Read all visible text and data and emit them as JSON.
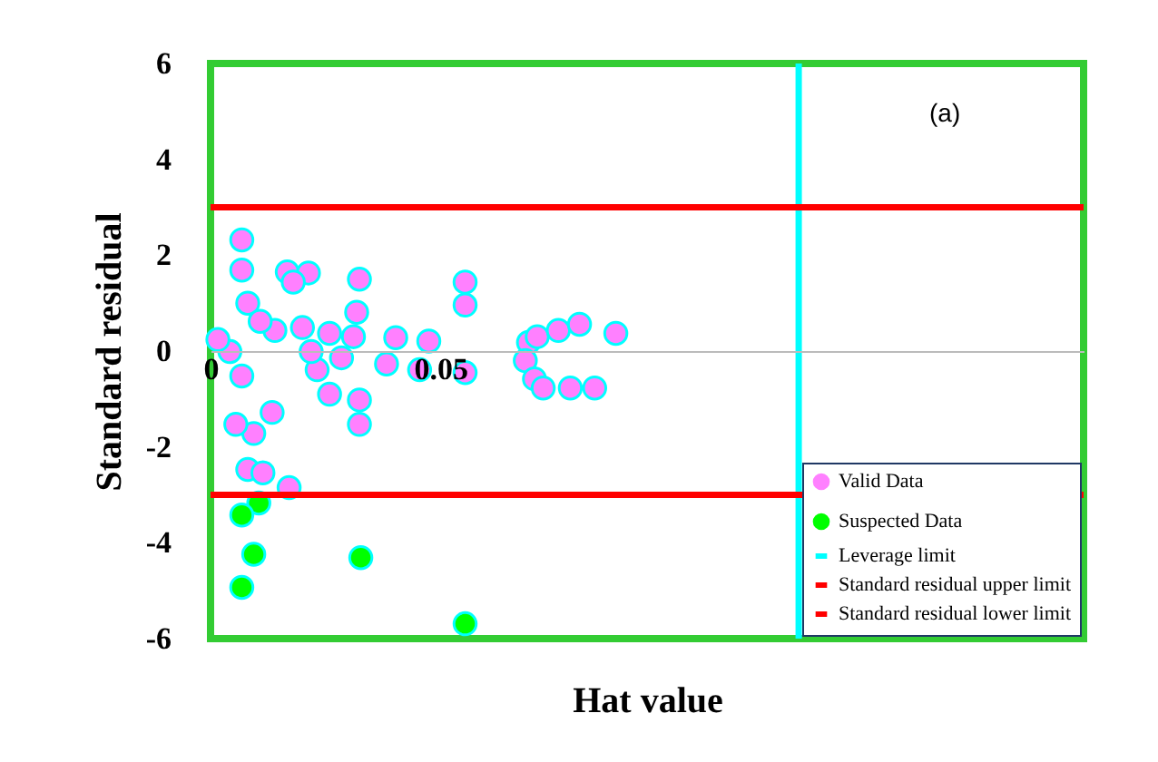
{
  "chart_data": {
    "type": "scatter",
    "xlabel": "Hat value",
    "ylabel": "Standard residual",
    "annotations": [
      "(a)"
    ],
    "xlim": [
      0,
      0.19
    ],
    "xticks": [
      0,
      0.05
    ],
    "ylim": [
      -6,
      6
    ],
    "yticks": [
      -6,
      -4,
      -2,
      0,
      2,
      4,
      6
    ],
    "grid": false,
    "legend": "bottom right",
    "marker": "circle",
    "series": [
      {
        "name": "Valid Data",
        "color": "#ff80ff",
        "x": [
          0.0068,
          0.0068,
          0.0167,
          0.0213,
          0.018,
          0.0324,
          0.0554,
          0.0554,
          0.0081,
          0.014,
          0.0318,
          0.0259,
          0.0311,
          0.0403,
          0.0475,
          0.0383,
          0.0455,
          0.0554,
          0.0232,
          0.0285,
          0.0259,
          0.0324,
          0.0324,
          0.0094,
          0.0081,
          0.0114,
          0.0171,
          0.0055,
          0.0134,
          0.0042,
          0.0016,
          0.0068,
          0.0108,
          0.02,
          0.0219,
          0.0692,
          0.0685,
          0.0711,
          0.0757,
          0.0803,
          0.0882,
          0.0705,
          0.0724,
          0.0783,
          0.0836
        ],
        "values": [
          2.32,
          1.69,
          1.65,
          1.63,
          1.44,
          1.5,
          1.44,
          0.96,
          1.0,
          0.43,
          0.81,
          0.37,
          0.3,
          0.28,
          0.21,
          -0.27,
          -0.39,
          -0.45,
          -0.39,
          -0.14,
          -0.9,
          -1.02,
          -1.53,
          -1.72,
          -2.47,
          -2.54,
          -2.85,
          -1.53,
          -1.28,
          -0.01,
          0.24,
          -0.52,
          0.62,
          0.49,
          -0.01,
          0.18,
          -0.2,
          0.3,
          0.43,
          0.56,
          0.37,
          -0.58,
          -0.77,
          -0.77,
          -0.77
        ]
      },
      {
        "name": "Suspected Data",
        "color": "#00ff00",
        "x": [
          0.0105,
          0.0068,
          0.0094,
          0.0068,
          0.0327,
          0.0554
        ],
        "values": [
          -3.17,
          -3.42,
          -4.24,
          -4.93,
          -4.31,
          -5.69
        ]
      }
    ],
    "ref_lines": [
      {
        "axis": "x",
        "value": 0.128,
        "label": "Leverage limit",
        "color": "#00ffff"
      },
      {
        "axis": "y",
        "value": 3,
        "label": "Standard residual upper limit",
        "color": "#ff0000"
      },
      {
        "axis": "y",
        "value": -3,
        "label": "Standard residual lower limit",
        "color": "#ff0000"
      }
    ]
  }
}
